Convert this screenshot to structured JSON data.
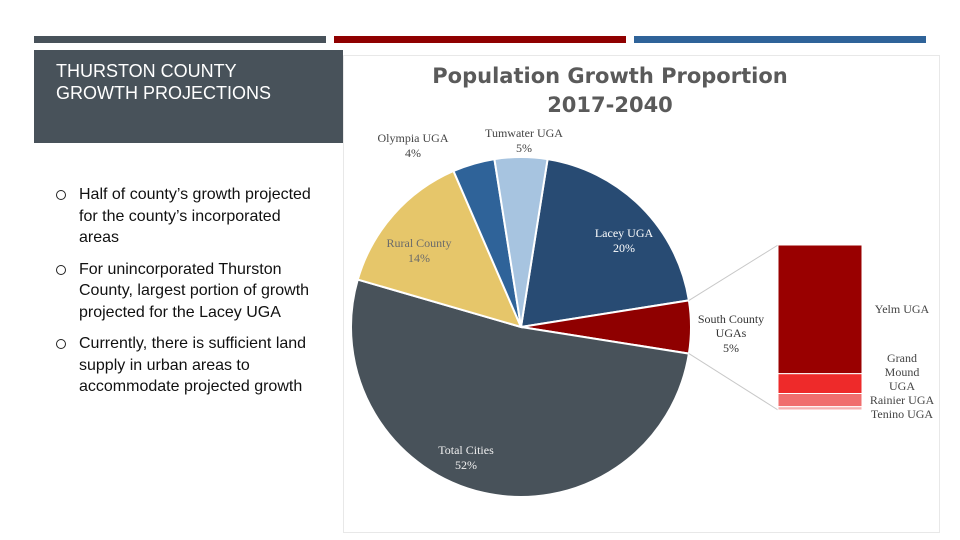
{
  "slide": {
    "title": "THURSTON COUNTY GROWTH PROJECTIONS",
    "bullets": [
      "Half of county’s growth projected for the county’s incorporated areas",
      "For unincorporated Thurston County, largest portion of growth projected for the Lacey UGA",
      "Currently, there is sufficient land supply in urban areas to accommodate projected growth"
    ]
  },
  "chart_data": {
    "type": "pie",
    "title": "Population Growth Proportion 2017-2040",
    "categories": [
      "Lacey UGA",
      "South County UGAs",
      "Total Cities",
      "Rural County",
      "Olympia UGA",
      "Tumwater UGA"
    ],
    "values": [
      20,
      5,
      52,
      14,
      4,
      5
    ],
    "value_labels": [
      "20%",
      "5%",
      "52%",
      "14%",
      "4%",
      "5%"
    ],
    "colors": [
      "#284b73",
      "#8f0000",
      "#48525a",
      "#e6c66a",
      "#2f6399",
      "#a7c4e0"
    ],
    "breakdown": {
      "categories": [
        "Yelm UGA",
        "Grand Mound UGA",
        "Rainier UGA",
        "Tenino UGA"
      ],
      "values": [
        3.9,
        0.6,
        0.4,
        0.1
      ],
      "colors": [
        "#990000",
        "#ee2a2a",
        "#f06e6e",
        "#f7b0b0"
      ]
    }
  }
}
